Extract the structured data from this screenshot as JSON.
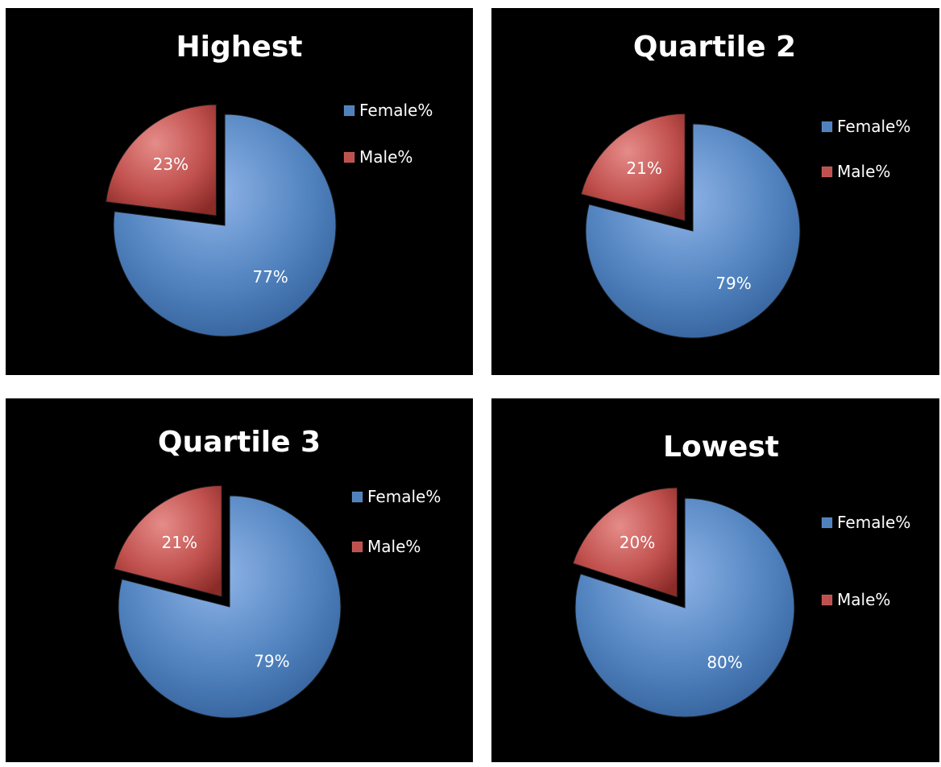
{
  "colors": {
    "female": "#4f81bd",
    "male": "#c0504d",
    "background": "#000000"
  },
  "chart_data": [
    {
      "type": "pie",
      "title": "Highest",
      "categories": [
        "Female%",
        "Male%"
      ],
      "values": [
        77,
        23
      ],
      "labels": [
        "77%",
        "23%"
      ],
      "exploded": "Male%",
      "legend": "right"
    },
    {
      "type": "pie",
      "title": "Quartile 2",
      "categories": [
        "Female%",
        "Male%"
      ],
      "values": [
        79,
        21
      ],
      "labels": [
        "79%",
        "21%"
      ],
      "exploded": "Male%",
      "legend": "right"
    },
    {
      "type": "pie",
      "title": "Quartile 3",
      "categories": [
        "Female%",
        "Male%"
      ],
      "values": [
        79,
        21
      ],
      "labels": [
        "79%",
        "21%"
      ],
      "exploded": "Male%",
      "legend": "right"
    },
    {
      "type": "pie",
      "title": "Lowest",
      "categories": [
        "Female%",
        "Male%"
      ],
      "values": [
        80,
        20
      ],
      "labels": [
        "80%",
        "20%"
      ],
      "exploded": "Male%",
      "legend": "right"
    }
  ]
}
